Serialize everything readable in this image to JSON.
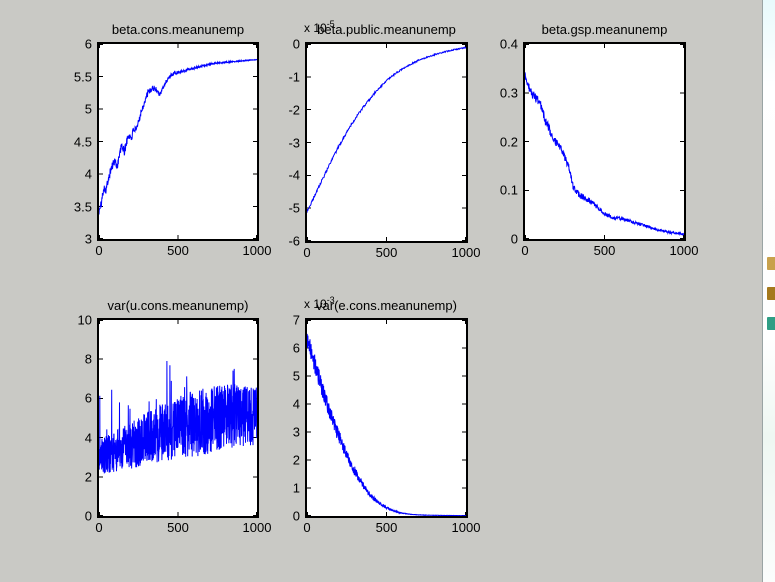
{
  "window": {
    "background_color": "#c9c9c5",
    "plot_box_color": "#ffffff",
    "axis_color": "#000000",
    "line_color": "#0000ff"
  },
  "right_edge": {
    "description": "sliver of background window",
    "icons": [
      {
        "name": "olive-icon",
        "color": "#c8a14c"
      },
      {
        "name": "gold-icon",
        "color": "#a5791c"
      },
      {
        "name": "teal-icon",
        "color": "#2f9e85"
      }
    ]
  },
  "chart_data": [
    {
      "type": "line",
      "title": "beta.cons.meanunemp",
      "xlabel": "",
      "ylabel": "",
      "grid": false,
      "legend": null,
      "xlim": [
        0,
        1000
      ],
      "ylim": [
        3,
        6
      ],
      "xticks": [
        0,
        500,
        1000
      ],
      "xtick_labels": [
        "0",
        "500",
        "1000"
      ],
      "yticks": [
        3,
        3.5,
        4,
        4.5,
        5,
        5.5,
        6
      ],
      "ytick_labels": [
        "3",
        "3.5",
        "4",
        "4.5",
        "5",
        "5.5",
        "6"
      ],
      "line_color": "#0000ff",
      "series": {
        "name": "beta.cons.meanunemp",
        "n": 600,
        "seed": 101,
        "trend": [
          [
            0,
            3.42
          ],
          [
            15,
            3.55
          ],
          [
            30,
            3.8
          ],
          [
            45,
            3.75
          ],
          [
            60,
            3.95
          ],
          [
            80,
            4.1
          ],
          [
            100,
            4.2
          ],
          [
            115,
            4.12
          ],
          [
            130,
            4.3
          ],
          [
            145,
            4.45
          ],
          [
            160,
            4.33
          ],
          [
            175,
            4.5
          ],
          [
            190,
            4.6
          ],
          [
            205,
            4.55
          ],
          [
            220,
            4.7
          ],
          [
            235,
            4.65
          ],
          [
            250,
            4.8
          ],
          [
            265,
            4.95
          ],
          [
            280,
            5.05
          ],
          [
            295,
            5.15
          ],
          [
            310,
            5.25
          ],
          [
            330,
            5.3
          ],
          [
            350,
            5.32
          ],
          [
            370,
            5.28
          ],
          [
            385,
            5.22
          ],
          [
            400,
            5.3
          ],
          [
            420,
            5.4
          ],
          [
            440,
            5.48
          ],
          [
            460,
            5.52
          ],
          [
            480,
            5.55
          ],
          [
            500,
            5.56
          ],
          [
            550,
            5.6
          ],
          [
            600,
            5.63
          ],
          [
            650,
            5.66
          ],
          [
            700,
            5.69
          ],
          [
            750,
            5.71
          ],
          [
            800,
            5.72
          ],
          [
            850,
            5.73
          ],
          [
            900,
            5.74
          ],
          [
            950,
            5.75
          ],
          [
            1000,
            5.76
          ]
        ],
        "noise_amp": [
          [
            0,
            0.06
          ],
          [
            150,
            0.07
          ],
          [
            300,
            0.05
          ],
          [
            450,
            0.03
          ],
          [
            600,
            0.018
          ],
          [
            800,
            0.01
          ],
          [
            1000,
            0.006
          ]
        ],
        "spike_prob": 0,
        "spike_max": 0,
        "clamp_min": null
      }
    },
    {
      "type": "line",
      "title": "beta.public.meanunemp",
      "scale_label": "x 10",
      "scale_exponent": "-5",
      "xlabel": "",
      "ylabel": "",
      "grid": false,
      "legend": null,
      "xlim": [
        0,
        1000
      ],
      "ylim": [
        -6,
        0
      ],
      "xticks": [
        0,
        500,
        1000
      ],
      "xtick_labels": [
        "0",
        "500",
        "1000"
      ],
      "yticks": [
        -6,
        -5,
        -4,
        -3,
        -2,
        -1,
        0
      ],
      "ytick_labels": [
        "-6",
        "-5",
        "-4",
        "-3",
        "-2",
        "-1",
        "0"
      ],
      "line_color": "#0000ff",
      "series": {
        "name": "beta.public.meanunemp",
        "n": 400,
        "seed": 202,
        "trend": [
          [
            0,
            -5.1
          ],
          [
            25,
            -4.85
          ],
          [
            50,
            -4.6
          ],
          [
            75,
            -4.35
          ],
          [
            100,
            -4.1
          ],
          [
            125,
            -3.85
          ],
          [
            150,
            -3.6
          ],
          [
            175,
            -3.35
          ],
          [
            200,
            -3.12
          ],
          [
            225,
            -2.9
          ],
          [
            250,
            -2.68
          ],
          [
            275,
            -2.48
          ],
          [
            300,
            -2.3
          ],
          [
            325,
            -2.12
          ],
          [
            350,
            -1.95
          ],
          [
            375,
            -1.8
          ],
          [
            400,
            -1.65
          ],
          [
            425,
            -1.5
          ],
          [
            450,
            -1.37
          ],
          [
            475,
            -1.24
          ],
          [
            500,
            -1.12
          ],
          [
            525,
            -1.02
          ],
          [
            550,
            -0.92
          ],
          [
            575,
            -0.84
          ],
          [
            600,
            -0.76
          ],
          [
            650,
            -0.62
          ],
          [
            700,
            -0.5
          ],
          [
            750,
            -0.41
          ],
          [
            800,
            -0.33
          ],
          [
            850,
            -0.26
          ],
          [
            900,
            -0.2
          ],
          [
            950,
            -0.15
          ],
          [
            1000,
            -0.11
          ]
        ],
        "noise_amp": [
          [
            0,
            0.05
          ],
          [
            200,
            0.04
          ],
          [
            500,
            0.025
          ],
          [
            1000,
            0.015
          ]
        ],
        "spike_prob": 0,
        "spike_max": 0,
        "clamp_min": null
      }
    },
    {
      "type": "line",
      "title": "beta.gsp.meanunemp",
      "xlabel": "",
      "ylabel": "",
      "grid": false,
      "legend": null,
      "xlim": [
        0,
        1000
      ],
      "ylim": [
        0,
        0.4
      ],
      "xticks": [
        0,
        500,
        1000
      ],
      "xtick_labels": [
        "0",
        "500",
        "1000"
      ],
      "yticks": [
        0,
        0.1,
        0.2,
        0.3,
        0.4
      ],
      "ytick_labels": [
        "0",
        "0.1",
        "0.2",
        "0.3",
        "0.4"
      ],
      "line_color": "#0000ff",
      "series": {
        "name": "beta.gsp.meanunemp",
        "n": 600,
        "seed": 303,
        "trend": [
          [
            0,
            0.335
          ],
          [
            20,
            0.315
          ],
          [
            40,
            0.3
          ],
          [
            60,
            0.292
          ],
          [
            80,
            0.285
          ],
          [
            100,
            0.272
          ],
          [
            115,
            0.258
          ],
          [
            130,
            0.24
          ],
          [
            150,
            0.228
          ],
          [
            165,
            0.215
          ],
          [
            180,
            0.205
          ],
          [
            200,
            0.196
          ],
          [
            215,
            0.19
          ],
          [
            230,
            0.185
          ],
          [
            245,
            0.172
          ],
          [
            260,
            0.16
          ],
          [
            275,
            0.145
          ],
          [
            290,
            0.125
          ],
          [
            300,
            0.11
          ],
          [
            315,
            0.1
          ],
          [
            330,
            0.094
          ],
          [
            345,
            0.09
          ],
          [
            360,
            0.087
          ],
          [
            380,
            0.083
          ],
          [
            400,
            0.08
          ],
          [
            420,
            0.075
          ],
          [
            440,
            0.07
          ],
          [
            460,
            0.064
          ],
          [
            480,
            0.058
          ],
          [
            500,
            0.052
          ],
          [
            525,
            0.048
          ],
          [
            550,
            0.045
          ],
          [
            575,
            0.043
          ],
          [
            600,
            0.042
          ],
          [
            625,
            0.04
          ],
          [
            650,
            0.038
          ],
          [
            675,
            0.035
          ],
          [
            700,
            0.032
          ],
          [
            725,
            0.03
          ],
          [
            750,
            0.028
          ],
          [
            775,
            0.025
          ],
          [
            800,
            0.022
          ],
          [
            825,
            0.02
          ],
          [
            850,
            0.018
          ],
          [
            875,
            0.016
          ],
          [
            900,
            0.014
          ],
          [
            925,
            0.013
          ],
          [
            950,
            0.012
          ],
          [
            975,
            0.011
          ],
          [
            1000,
            0.01
          ]
        ],
        "noise_amp": [
          [
            0,
            0.008
          ],
          [
            150,
            0.009
          ],
          [
            300,
            0.007
          ],
          [
            500,
            0.004
          ],
          [
            700,
            0.003
          ],
          [
            1000,
            0.002
          ]
        ],
        "spike_prob": 0,
        "spike_max": 0,
        "clamp_min": 0.004
      }
    },
    {
      "type": "line",
      "title": "var(u.cons.meanunemp)",
      "xlabel": "",
      "ylabel": "",
      "grid": false,
      "legend": null,
      "xlim": [
        0,
        1000
      ],
      "ylim": [
        0,
        10
      ],
      "xticks": [
        0,
        500,
        1000
      ],
      "xtick_labels": [
        "0",
        "500",
        "1000"
      ],
      "yticks": [
        0,
        2,
        4,
        6,
        8,
        10
      ],
      "ytick_labels": [
        "0",
        "2",
        "4",
        "6",
        "8",
        "10"
      ],
      "line_color": "#0000ff",
      "series": {
        "name": "var(u.cons.meanunemp)",
        "n": 950,
        "seed": 404,
        "trend": [
          [
            0,
            3.0
          ],
          [
            100,
            3.3
          ],
          [
            200,
            3.6
          ],
          [
            300,
            3.95
          ],
          [
            400,
            4.25
          ],
          [
            500,
            4.5
          ],
          [
            600,
            4.7
          ],
          [
            700,
            4.85
          ],
          [
            800,
            5.0
          ],
          [
            900,
            5.1
          ],
          [
            1000,
            5.15
          ]
        ],
        "noise_amp": [
          [
            0,
            0.9
          ],
          [
            200,
            1.2
          ],
          [
            400,
            1.5
          ],
          [
            600,
            1.7
          ],
          [
            800,
            1.75
          ],
          [
            1000,
            1.6
          ]
        ],
        "spike_prob": 0.04,
        "spike_max": 2.8,
        "clamp_min": 0.2
      }
    },
    {
      "type": "line",
      "title": "var(e.cons.meanunemp)",
      "scale_label": "x 10",
      "scale_exponent": "-3",
      "xlabel": "",
      "ylabel": "",
      "grid": false,
      "legend": null,
      "xlim": [
        0,
        1000
      ],
      "ylim": [
        0,
        7
      ],
      "xticks": [
        0,
        500,
        1000
      ],
      "xtick_labels": [
        "0",
        "500",
        "1000"
      ],
      "yticks": [
        0,
        1,
        2,
        3,
        4,
        5,
        6,
        7
      ],
      "ytick_labels": [
        "0",
        "1",
        "2",
        "3",
        "4",
        "5",
        "6",
        "7"
      ],
      "line_color": "#0000ff",
      "series": {
        "name": "var(e.cons.meanunemp)",
        "n": 700,
        "seed": 505,
        "trend": [
          [
            0,
            6.3
          ],
          [
            20,
            6.0
          ],
          [
            40,
            5.6
          ],
          [
            60,
            5.2
          ],
          [
            80,
            4.85
          ],
          [
            100,
            4.45
          ],
          [
            125,
            4.0
          ],
          [
            150,
            3.6
          ],
          [
            175,
            3.2
          ],
          [
            200,
            2.85
          ],
          [
            225,
            2.5
          ],
          [
            250,
            2.2
          ],
          [
            275,
            1.9
          ],
          [
            300,
            1.6
          ],
          [
            325,
            1.35
          ],
          [
            350,
            1.12
          ],
          [
            375,
            0.92
          ],
          [
            400,
            0.74
          ],
          [
            425,
            0.6
          ],
          [
            450,
            0.48
          ],
          [
            475,
            0.38
          ],
          [
            500,
            0.3
          ],
          [
            525,
            0.23
          ],
          [
            550,
            0.18
          ],
          [
            575,
            0.13
          ],
          [
            600,
            0.1
          ],
          [
            650,
            0.06
          ],
          [
            700,
            0.04
          ],
          [
            750,
            0.03
          ],
          [
            800,
            0.025
          ],
          [
            850,
            0.02
          ],
          [
            900,
            0.018
          ],
          [
            950,
            0.015
          ],
          [
            1000,
            0.013
          ]
        ],
        "noise_amp": [
          [
            0,
            0.3
          ],
          [
            50,
            0.35
          ],
          [
            100,
            0.3
          ],
          [
            150,
            0.28
          ],
          [
            200,
            0.25
          ],
          [
            250,
            0.2
          ],
          [
            300,
            0.17
          ],
          [
            350,
            0.12
          ],
          [
            400,
            0.09
          ],
          [
            450,
            0.06
          ],
          [
            500,
            0.04
          ],
          [
            550,
            0.025
          ],
          [
            600,
            0.012
          ],
          [
            700,
            0.006
          ],
          [
            1000,
            0.003
          ]
        ],
        "spike_prob": 0,
        "spike_max": 0,
        "clamp_min": 0.008
      }
    }
  ]
}
